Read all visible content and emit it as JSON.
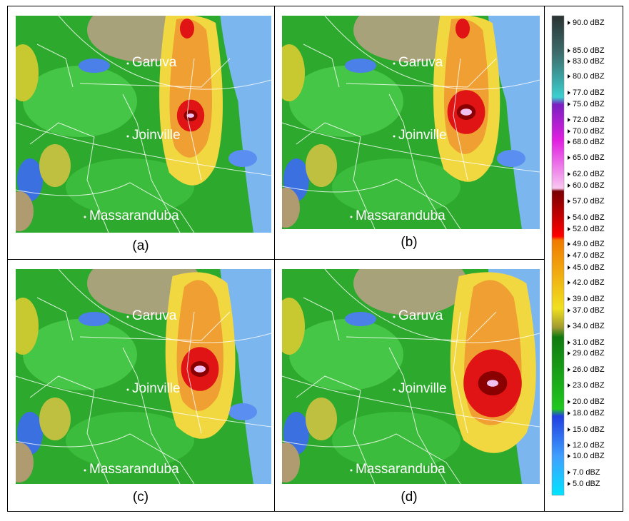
{
  "panels": [
    {
      "caption": "(a)",
      "places": [
        "Garuva",
        "Joinville",
        "Massaranduba"
      ]
    },
    {
      "caption": "(b)",
      "places": [
        "Garuva",
        "Joinville",
        "Massaranduba"
      ]
    },
    {
      "caption": "(c)",
      "places": [
        "Garuva",
        "Joinville",
        "Massaranduba"
      ]
    },
    {
      "caption": "(d)",
      "places": [
        "Garuva",
        "Joinville",
        "Massaranduba"
      ]
    }
  ],
  "legend": {
    "labels": [
      "90.0 dBZ",
      "85.0 dBZ",
      "83.0 dBZ",
      "80.0 dBZ",
      "77.0 dBZ",
      "75.0 dBZ",
      "72.0 dBZ",
      "70.0 dBZ",
      "68.0 dBZ",
      "65.0 dBZ",
      "62.0 dBZ",
      "60.0 dBZ",
      "57.0 dBZ",
      "54.0 dBZ",
      "52.0 dBZ",
      "49.0 dBZ",
      "47.0 dBZ",
      "45.0 dBZ",
      "42.0 dBZ",
      "39.0 dBZ",
      "37.0 dBZ",
      "34.0 dBZ",
      "31.0 dBZ",
      "29.0 dBZ",
      "26.0 dBZ",
      "23.0 dBZ",
      "20.0 dBZ",
      "18.0 dBZ",
      "15.0 dBZ",
      "12.0 dBZ",
      "10.0 dBZ",
      "7.0 dBZ",
      "5.0 dBZ"
    ]
  }
}
